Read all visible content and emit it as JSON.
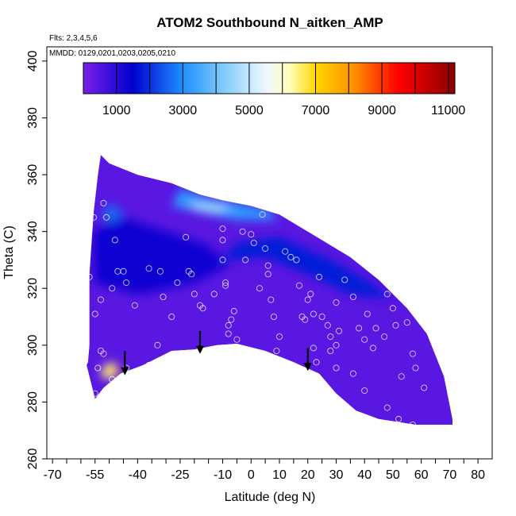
{
  "chart_data": {
    "type": "contour-curtain",
    "title": "ATOM2 Southbound N_aitken_AMP",
    "flights_label": "Flts: 2,3,4,5,6",
    "dates_label": "MMDD: 0129,0201,0203,0205,0210",
    "xlabel": "Latitude (deg N)",
    "ylabel": "Theta (C)",
    "xlim": [
      -72,
      85
    ],
    "ylim": [
      260,
      405
    ],
    "x_ticks": [
      {
        "value": -70,
        "label": "-70"
      },
      {
        "value": -55,
        "label": "-55"
      },
      {
        "value": -40,
        "label": "-40"
      },
      {
        "value": -25,
        "label": "-25"
      },
      {
        "value": -10,
        "label": "-10"
      },
      {
        "value": 0,
        "label": "0"
      },
      {
        "value": 10,
        "label": "10"
      },
      {
        "value": 20,
        "label": "20"
      },
      {
        "value": 30,
        "label": "30"
      },
      {
        "value": 40,
        "label": "40"
      },
      {
        "value": 50,
        "label": "50"
      },
      {
        "value": 60,
        "label": "60"
      },
      {
        "value": 70,
        "label": "70"
      },
      {
        "value": 80,
        "label": "80"
      }
    ],
    "y_ticks": [
      {
        "value": 260,
        "label": "260"
      },
      {
        "value": 280,
        "label": "280"
      },
      {
        "value": 300,
        "label": "300"
      },
      {
        "value": 320,
        "label": "320"
      },
      {
        "value": 340,
        "label": "340"
      },
      {
        "value": 360,
        "label": "360"
      },
      {
        "value": 380,
        "label": "380"
      },
      {
        "value": 400,
        "label": "400"
      }
    ],
    "colorbar": {
      "range": [
        0,
        11200
      ],
      "boundaries": [
        0,
        1000,
        2000,
        3000,
        4000,
        5000,
        6000,
        7000,
        8000,
        9000,
        10000,
        11000
      ],
      "labels": [
        "1000",
        "3000",
        "5000",
        "7000",
        "9000",
        "11000"
      ],
      "label_values": [
        1000,
        3000,
        5000,
        7000,
        9000,
        11000
      ],
      "stops": [
        {
          "value": 0,
          "color": "#7a20e8"
        },
        {
          "value": 1500,
          "color": "#0000cd"
        },
        {
          "value": 3000,
          "color": "#1e90ff"
        },
        {
          "value": 4300,
          "color": "#87cefa"
        },
        {
          "value": 5500,
          "color": "#f0f8ff"
        },
        {
          "value": 6200,
          "color": "#ffffc0"
        },
        {
          "value": 7000,
          "color": "#ffd700"
        },
        {
          "value": 8200,
          "color": "#ff8c00"
        },
        {
          "value": 9500,
          "color": "#ff0000"
        },
        {
          "value": 11200,
          "color": "#8b0000"
        }
      ]
    },
    "field_outline": [
      [
        -57.5,
        294
      ],
      [
        -57,
        300
      ],
      [
        -57,
        325
      ],
      [
        -55.5,
        347
      ],
      [
        -54,
        360
      ],
      [
        -53,
        367
      ],
      [
        -50,
        364
      ],
      [
        -40,
        360
      ],
      [
        -28,
        357
      ],
      [
        -18,
        353
      ],
      [
        -10,
        351
      ],
      [
        0,
        349
      ],
      [
        10,
        346
      ],
      [
        25,
        337
      ],
      [
        35,
        331
      ],
      [
        45,
        323
      ],
      [
        55,
        313
      ],
      [
        62,
        304
      ],
      [
        68,
        289
      ],
      [
        71,
        274
      ],
      [
        71,
        272
      ],
      [
        58,
        272
      ],
      [
        45,
        274
      ],
      [
        37,
        277
      ],
      [
        30,
        283
      ],
      [
        24,
        290
      ],
      [
        15,
        294
      ],
      [
        5,
        298
      ],
      [
        -5,
        300.5
      ],
      [
        -12,
        300
      ],
      [
        -20,
        298.5
      ],
      [
        -28,
        298
      ],
      [
        -38,
        293
      ],
      [
        -46,
        290
      ],
      [
        -52,
        285
      ],
      [
        -55,
        281
      ],
      [
        -56,
        285
      ],
      [
        -58,
        293
      ]
    ],
    "field_regions": [
      {
        "value": 1300,
        "points": [
          [
            -56,
            340
          ],
          [
            -46,
            345
          ],
          [
            -30,
            340
          ],
          [
            -15,
            335
          ],
          [
            -8,
            328
          ],
          [
            -20,
            322
          ],
          [
            -40,
            318
          ],
          [
            -55,
            322
          ]
        ]
      },
      {
        "value": 1800,
        "points": [
          [
            -20,
            322
          ],
          [
            -8,
            330
          ],
          [
            5,
            331
          ],
          [
            20,
            325
          ],
          [
            35,
            318
          ],
          [
            50,
            316
          ],
          [
            55,
            312
          ],
          [
            42,
            322
          ],
          [
            28,
            330
          ],
          [
            10,
            338
          ],
          [
            -5,
            336
          ],
          [
            -12,
            328
          ]
        ]
      },
      {
        "value": 3200,
        "points": [
          [
            -25,
            355
          ],
          [
            -15,
            352
          ],
          [
            -5,
            350
          ],
          [
            5,
            348
          ],
          [
            10,
            344
          ],
          [
            -5,
            344
          ],
          [
            -15,
            346
          ],
          [
            -28,
            349
          ]
        ]
      },
      {
        "value": 4800,
        "points": [
          [
            -22,
            350
          ],
          [
            -14,
            349.5
          ],
          [
            -6,
            348.5
          ],
          [
            -12,
            347
          ],
          [
            -20,
            348
          ]
        ]
      },
      {
        "value": 2600,
        "points": [
          [
            -50,
            350
          ],
          [
            -45,
            347
          ],
          [
            -48,
            343
          ],
          [
            -53,
            345
          ]
        ]
      },
      {
        "value": 6500,
        "points": [
          [
            -53,
            291
          ],
          [
            -50,
            294
          ],
          [
            -47,
            293
          ],
          [
            -47,
            289
          ],
          [
            -52,
            288
          ]
        ]
      },
      {
        "value": 9800,
        "points": [
          [
            -49,
            291
          ],
          [
            -47,
            292
          ],
          [
            -46,
            290.5
          ],
          [
            -48,
            290
          ]
        ]
      }
    ],
    "base_value": 400,
    "observations": [
      [
        -55.5,
        345
      ],
      [
        -52,
        350
      ],
      [
        -51,
        345
      ],
      [
        -48,
        337
      ],
      [
        -55,
        311
      ],
      [
        -57,
        324
      ],
      [
        -53,
        316
      ],
      [
        -49,
        320
      ],
      [
        -47,
        326
      ],
      [
        -45,
        326
      ],
      [
        -44,
        322
      ],
      [
        -41,
        314
      ],
      [
        -36,
        327
      ],
      [
        -32,
        326
      ],
      [
        -31,
        317
      ],
      [
        -28,
        310
      ],
      [
        -26,
        322
      ],
      [
        -23,
        338
      ],
      [
        -22,
        326
      ],
      [
        -21,
        325
      ],
      [
        -20,
        318
      ],
      [
        -18,
        314
      ],
      [
        -17,
        313
      ],
      [
        -13,
        318
      ],
      [
        -10,
        341
      ],
      [
        -10,
        337
      ],
      [
        -10,
        330
      ],
      [
        -9,
        321
      ],
      [
        -9,
        322
      ],
      [
        -8,
        307
      ],
      [
        -8,
        304
      ],
      [
        -7,
        309
      ],
      [
        -6,
        312
      ],
      [
        -5,
        302
      ],
      [
        -3,
        340
      ],
      [
        -2,
        330
      ],
      [
        0,
        339
      ],
      [
        1,
        336
      ],
      [
        2,
        350
      ],
      [
        3,
        350
      ],
      [
        4,
        346
      ],
      [
        5,
        334
      ],
      [
        6,
        328
      ],
      [
        6,
        325
      ],
      [
        7,
        316
      ],
      [
        8,
        310
      ],
      [
        9,
        298
      ],
      [
        10,
        303
      ],
      [
        12,
        333
      ],
      [
        14,
        331
      ],
      [
        16,
        330
      ],
      [
        17,
        321
      ],
      [
        18,
        310
      ],
      [
        19,
        309
      ],
      [
        20,
        316
      ],
      [
        21,
        318
      ],
      [
        22,
        311
      ],
      [
        24,
        324
      ],
      [
        25,
        310
      ],
      [
        27,
        307
      ],
      [
        28,
        303
      ],
      [
        28,
        298
      ],
      [
        30,
        300
      ],
      [
        30,
        315
      ],
      [
        31,
        305
      ],
      [
        33,
        323
      ],
      [
        36,
        317
      ],
      [
        38,
        306
      ],
      [
        40,
        302
      ],
      [
        41,
        311
      ],
      [
        43,
        299
      ],
      [
        44,
        306
      ],
      [
        47,
        303
      ],
      [
        48,
        318
      ],
      [
        50,
        313
      ],
      [
        51,
        307
      ],
      [
        53,
        289
      ],
      [
        55,
        308
      ],
      [
        57,
        297
      ],
      [
        58,
        292
      ],
      [
        61,
        285
      ],
      [
        -52,
        297
      ],
      [
        -53,
        298
      ],
      [
        -54,
        292
      ],
      [
        -49,
        288
      ],
      [
        -44,
        292
      ],
      [
        -36,
        293
      ],
      [
        -33,
        300
      ],
      [
        -21,
        297
      ],
      [
        -55,
        283
      ],
      [
        -60,
        293
      ],
      [
        -59,
        324
      ],
      [
        -7,
        296
      ],
      [
        3,
        320
      ],
      [
        23,
        294
      ],
      [
        30,
        292
      ],
      [
        36,
        290
      ],
      [
        40,
        284
      ],
      [
        48,
        278
      ],
      [
        52,
        274
      ],
      [
        57,
        272
      ],
      [
        22,
        299
      ]
    ],
    "arrows": [
      {
        "lat": -44.5,
        "theta_top": 298,
        "theta_bottom": 290
      },
      {
        "lat": -18,
        "theta_top": 305,
        "theta_bottom": 297.5
      },
      {
        "lat": 20,
        "theta_top": 299,
        "theta_bottom": 291.5
      }
    ]
  }
}
